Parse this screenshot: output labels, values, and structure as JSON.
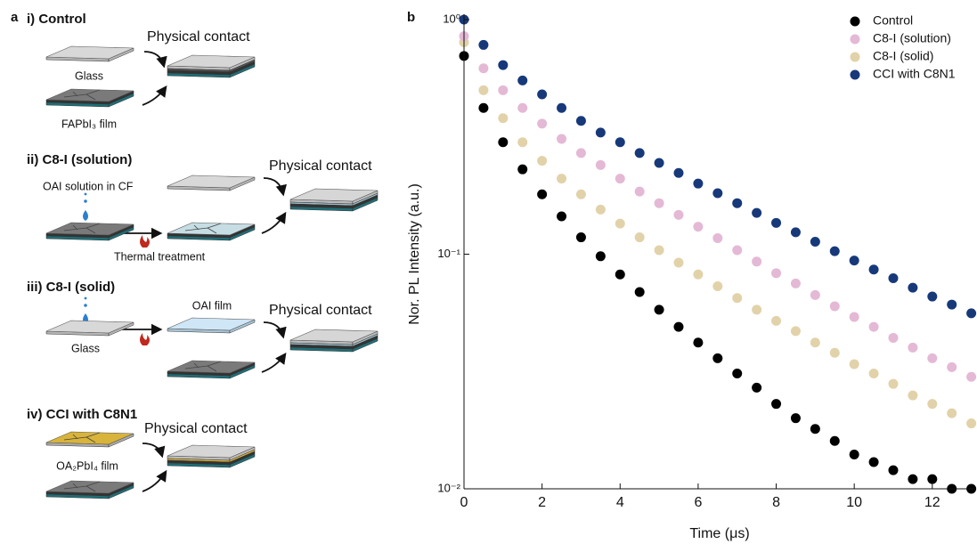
{
  "diagram": {
    "panel_label": "a",
    "sections": [
      {
        "title": "i) Control",
        "texts": [
          "Physical contact",
          "Glass",
          "FAPbI₃ film"
        ]
      },
      {
        "title": "ii) C8-I (solution)",
        "texts": [
          "Physical contact",
          "OAI solution in CF",
          "Thermal treatment"
        ]
      },
      {
        "title": "iii) C8-I (solid)",
        "texts": [
          "OAI film",
          "Physical contact",
          "Glass"
        ]
      },
      {
        "title": "iv) CCI with C8N1",
        "texts": [
          "Physical contact",
          "OA₂PbI₄ film"
        ]
      }
    ]
  },
  "chart_data": {
    "type": "scatter",
    "panel_label": "b",
    "x_label": "Time (μs)",
    "y_label": "Nor. PL Intensity (a.u.)",
    "yscale": "log",
    "legend": "upper right",
    "xlim": [
      0,
      13.1
    ],
    "xticks": [
      0,
      2,
      4,
      6,
      8,
      10,
      12
    ],
    "ylim": [
      0.01,
      1
    ],
    "yticks": [
      {
        "value": 0.01,
        "label": "10⁻²"
      },
      {
        "value": 0.1,
        "label": "10⁻¹"
      },
      {
        "value": 1,
        "label": "10⁰"
      }
    ],
    "x": [
      0,
      0.5,
      1,
      1.5,
      2,
      2.5,
      3,
      3.5,
      4,
      4.5,
      5,
      5.5,
      6,
      6.5,
      7,
      7.5,
      8,
      8.5,
      9,
      9.5,
      10,
      10.5,
      11,
      11.5,
      12,
      12.5,
      13
    ],
    "series": [
      {
        "name": "Control",
        "color": "#000000",
        "values": [
          0.7,
          0.42,
          0.3,
          0.23,
          0.18,
          0.145,
          0.118,
          0.098,
          0.082,
          0.069,
          0.058,
          0.049,
          0.042,
          0.036,
          0.031,
          0.027,
          0.023,
          0.02,
          0.018,
          0.016,
          0.014,
          0.013,
          0.012,
          0.011,
          0.011,
          0.01,
          0.01
        ]
      },
      {
        "name": "C8-I (solution)",
        "color": "#e4b9d5",
        "values": [
          0.85,
          0.62,
          0.5,
          0.42,
          0.36,
          0.31,
          0.27,
          0.24,
          0.21,
          0.185,
          0.165,
          0.147,
          0.131,
          0.117,
          0.104,
          0.093,
          0.083,
          0.075,
          0.067,
          0.06,
          0.054,
          0.049,
          0.044,
          0.04,
          0.036,
          0.033,
          0.03
        ]
      },
      {
        "name": "C8-I (solid)",
        "color": "#e2d2aa",
        "values": [
          0.8,
          0.5,
          0.38,
          0.3,
          0.25,
          0.21,
          0.18,
          0.155,
          0.135,
          0.118,
          0.104,
          0.092,
          0.082,
          0.073,
          0.065,
          0.058,
          0.052,
          0.047,
          0.042,
          0.038,
          0.034,
          0.031,
          0.028,
          0.025,
          0.023,
          0.021,
          0.019
        ]
      },
      {
        "name": "CCI with C8N1",
        "color": "#17397a",
        "values": [
          1.0,
          0.78,
          0.64,
          0.55,
          0.48,
          0.42,
          0.37,
          0.33,
          0.3,
          0.27,
          0.245,
          0.222,
          0.2,
          0.182,
          0.165,
          0.15,
          0.136,
          0.124,
          0.113,
          0.103,
          0.094,
          0.086,
          0.079,
          0.072,
          0.066,
          0.061,
          0.056
        ]
      }
    ]
  }
}
